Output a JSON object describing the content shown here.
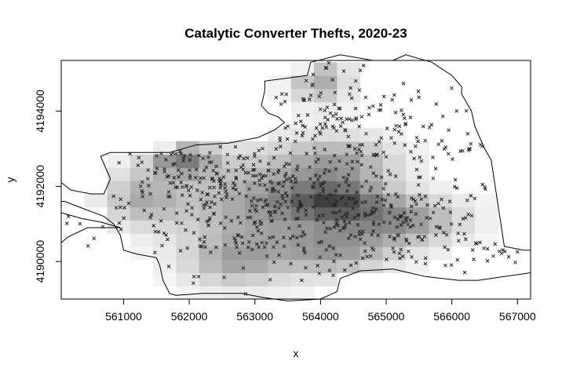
{
  "chart_data": {
    "type": "heatmap",
    "title": "Catalytic Converter Thefts, 2020-23",
    "xlabel": "x",
    "ylabel": "y",
    "xlim": [
      560050,
      567200
    ],
    "ylim": [
      4189000,
      4195350
    ],
    "x_ticks": [
      "561000",
      "562000",
      "563000",
      "564000",
      "565000",
      "566000",
      "567000"
    ],
    "y_ticks": [
      "4190000",
      "4192000",
      "4194000"
    ],
    "grid": false,
    "legend": "none",
    "colors": {
      "point": "#222222",
      "boundary": "#000000",
      "frame": "#000000"
    },
    "density_cell_size": [
      350,
      350
    ],
    "density_hotspots": [
      {
        "x": 561900,
        "y": 4192700,
        "sx": 350,
        "sy": 300,
        "w": 0.55
      },
      {
        "x": 564200,
        "y": 4191600,
        "sx": 500,
        "sy": 350,
        "w": 0.6
      },
      {
        "x": 565200,
        "y": 4191100,
        "sx": 650,
        "sy": 450,
        "w": 0.5
      },
      {
        "x": 564300,
        "y": 4192600,
        "sx": 600,
        "sy": 500,
        "w": 0.4
      },
      {
        "x": 563100,
        "y": 4191500,
        "sx": 900,
        "sy": 900,
        "w": 0.45
      },
      {
        "x": 564200,
        "y": 4190300,
        "sx": 600,
        "sy": 450,
        "w": 0.4
      },
      {
        "x": 564000,
        "y": 4194800,
        "sx": 300,
        "sy": 400,
        "w": 0.4
      },
      {
        "x": 561300,
        "y": 4191700,
        "sx": 400,
        "sy": 500,
        "w": 0.35
      },
      {
        "x": 562700,
        "y": 4190000,
        "sx": 500,
        "sy": 450,
        "w": 0.35
      }
    ],
    "point_clusters": [
      {
        "x": 563200,
        "y": 4191500,
        "sx": 1100,
        "sy": 900,
        "n": 380
      },
      {
        "x": 565300,
        "y": 4190900,
        "sx": 700,
        "sy": 550,
        "n": 140
      },
      {
        "x": 564200,
        "y": 4193600,
        "sx": 800,
        "sy": 900,
        "n": 150
      },
      {
        "x": 561800,
        "y": 4192400,
        "sx": 500,
        "sy": 450,
        "n": 70
      },
      {
        "x": 566100,
        "y": 4193200,
        "sx": 500,
        "sy": 800,
        "n": 40
      },
      {
        "x": 566700,
        "y": 4190300,
        "sx": 300,
        "sy": 200,
        "n": 14
      },
      {
        "x": 560400,
        "y": 4190800,
        "sx": 250,
        "sy": 250,
        "n": 6
      }
    ],
    "boundary": [
      [
        563150,
        4194550
      ],
      [
        563150,
        4194800
      ],
      [
        563800,
        4194950
      ],
      [
        563850,
        4195300
      ],
      [
        564300,
        4195500
      ],
      [
        564800,
        4195350
      ],
      [
        565100,
        4195350
      ],
      [
        565300,
        4195500
      ],
      [
        565700,
        4195300
      ],
      [
        566000,
        4194950
      ],
      [
        566150,
        4194650
      ],
      [
        566150,
        4194450
      ],
      [
        566200,
        4194300
      ],
      [
        566300,
        4194000
      ],
      [
        566350,
        4193600
      ],
      [
        566400,
        4193400
      ],
      [
        566500,
        4193000
      ],
      [
        566600,
        4192700
      ],
      [
        566800,
        4190400
      ],
      [
        567100,
        4190300
      ],
      [
        567200,
        4190300
      ],
      [
        567200,
        4189700
      ],
      [
        566400,
        4189500
      ],
      [
        566100,
        4189500
      ],
      [
        565600,
        4189600
      ],
      [
        565100,
        4189800
      ],
      [
        564600,
        4189750
      ],
      [
        564300,
        4189550
      ],
      [
        564250,
        4189200
      ],
      [
        564000,
        4189000
      ],
      [
        563500,
        4188950
      ],
      [
        563100,
        4189050
      ],
      [
        562800,
        4189150
      ],
      [
        562200,
        4189150
      ],
      [
        561800,
        4189100
      ],
      [
        561700,
        4189150
      ],
      [
        561600,
        4189500
      ],
      [
        561550,
        4189900
      ],
      [
        561500,
        4190100
      ],
      [
        561200,
        4190200
      ],
      [
        561000,
        4190300
      ],
      [
        560950,
        4190700
      ],
      [
        560850,
        4191000
      ],
      [
        560700,
        4191200
      ],
      [
        560400,
        4191400
      ],
      [
        560100,
        4191600
      ],
      [
        560050,
        4191600
      ],
      [
        560050,
        4192100
      ],
      [
        560200,
        4191900
      ],
      [
        560500,
        4191800
      ],
      [
        560700,
        4191800
      ],
      [
        560800,
        4192200
      ],
      [
        560650,
        4192800
      ],
      [
        560800,
        4192900
      ],
      [
        561200,
        4192900
      ],
      [
        561700,
        4192900
      ],
      [
        562100,
        4193100
      ],
      [
        562600,
        4193150
      ],
      [
        563050,
        4193300
      ],
      [
        563300,
        4193500
      ],
      [
        563450,
        4193700
      ],
      [
        563350,
        4193850
      ],
      [
        563200,
        4193950
      ],
      [
        563100,
        4194150
      ],
      [
        563150,
        4194550
      ]
    ],
    "peninsula": [
      [
        560050,
        4191300
      ],
      [
        560350,
        4191150
      ],
      [
        560650,
        4191050
      ],
      [
        560950,
        4190900
      ],
      [
        560450,
        4190900
      ],
      [
        560150,
        4190650
      ],
      [
        560050,
        4190500
      ]
    ]
  }
}
